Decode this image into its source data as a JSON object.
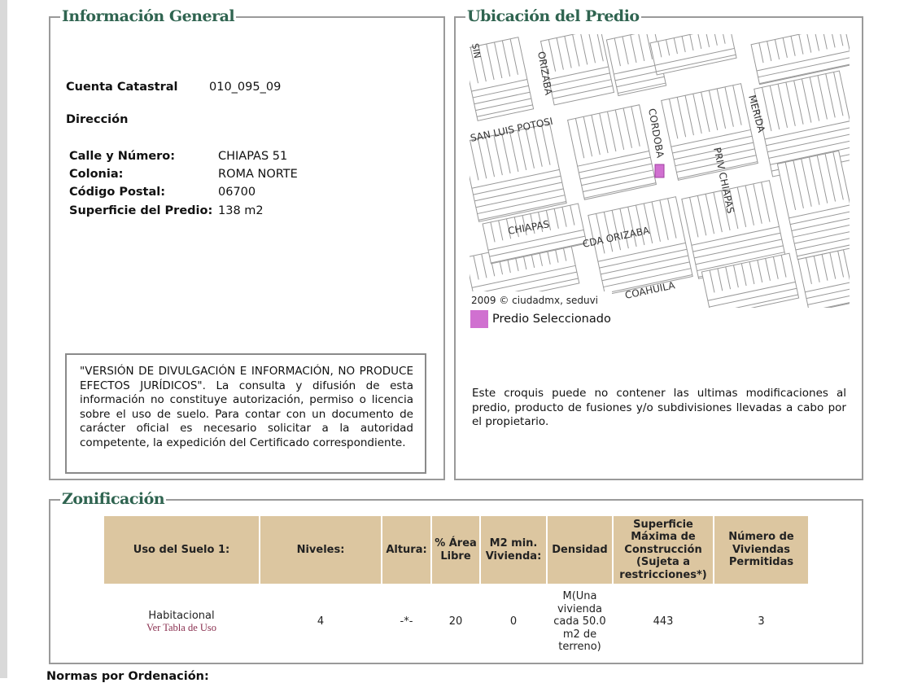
{
  "info": {
    "title": "Información General",
    "cuenta_label": "Cuenta Catastral",
    "cuenta_value": "010_095_09",
    "direccion_label": "Dirección",
    "rows": [
      {
        "label": "Calle y Número:",
        "value": "CHIAPAS 51"
      },
      {
        "label": "Colonia:",
        "value": "ROMA NORTE"
      },
      {
        "label": "Código Postal:",
        "value": "06700"
      },
      {
        "label": "Superficie del Predio:",
        "value": "138 m2"
      }
    ],
    "disclaimer": "\"VERSIÓN DE DIVULGACIÓN E INFORMACIÓN, NO PRODUCE EFECTOS JURÍDICOS\". La consulta y difusión de esta información no constituye autorización, permiso o licencia sobre el uso de suelo. Para contar con un documento de carácter oficial es necesario solicitar a la autoridad competente, la expedición del Certificado correspondiente."
  },
  "ubicacion": {
    "title": "Ubicación del Predio",
    "map_credit": "2009 © ciudadmx, seduvi",
    "streets": [
      "ORIZABA",
      "SAN LUIS POTOSI",
      "CORDOBA",
      "MERIDA",
      "PRIV CHIAPAS",
      "CHIAPAS",
      "CDA ORIZABA",
      "COAHUILA",
      "SIN"
    ],
    "legend_label": "Predio Seleccionado",
    "legend_color": "#d070d0",
    "note": "Este croquis puede no contener las ultimas modificaciones al predio, producto de fusiones y/o subdivisiones llevadas a cabo por el propietario."
  },
  "zonificacion": {
    "title": "Zonificación",
    "headers": [
      "Uso del Suelo 1:",
      "Niveles:",
      "Altura:",
      "% Área Libre",
      "M2 min. Vivienda:",
      "Densidad",
      "Superficie Máxima de Construcción (Sujeta a restricciones*)",
      "Número de Viviendas Permitidas"
    ],
    "row": {
      "uso": "Habitacional",
      "uso_link": "Ver Tabla de Uso",
      "niveles": "4",
      "altura": "-*-",
      "area_libre": "20",
      "m2_min": "0",
      "densidad": "M(Una vivienda cada 50.0 m2 de terreno)",
      "superficie": "443",
      "viviendas": "3"
    }
  },
  "normas_label": "Normas por Ordenación:"
}
